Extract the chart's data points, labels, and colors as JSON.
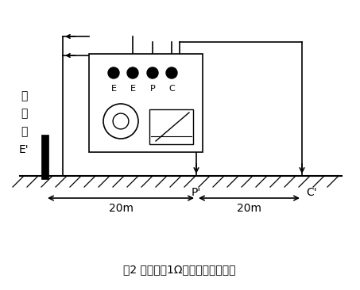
{
  "bg_color": "#ffffff",
  "line_color": "#000000",
  "title": "图2 测量小于1Ω接地电阻时接线图",
  "label_E_prime": "被\n测\n物\nE'",
  "label_P": "P'",
  "label_C": "C'",
  "label_20m_left": "20m",
  "label_20m_right": "20m",
  "terminal_labels": [
    "E",
    "E",
    "P",
    "C"
  ],
  "figsize": [
    4.53,
    3.66
  ],
  "dpi": 100
}
